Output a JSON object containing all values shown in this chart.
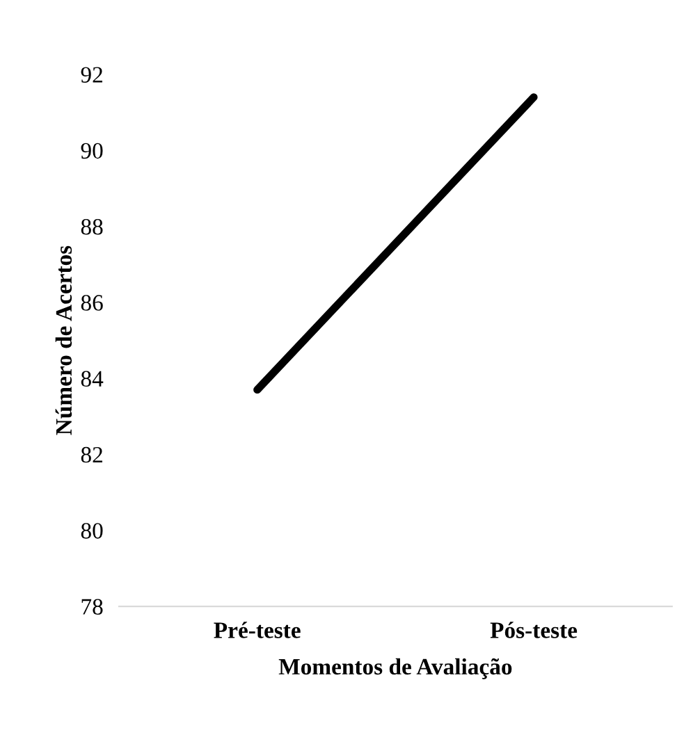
{
  "chart_data": {
    "type": "line",
    "xlabel": "Momentos de Avaliação",
    "ylabel": "Número de Acertos",
    "categories": [
      "Pré-teste",
      "Pós-teste"
    ],
    "series": [
      {
        "color": "#000000",
        "values": [
          83.7,
          91.4
        ]
      }
    ],
    "ylim": [
      78,
      92
    ],
    "yticks": [
      78,
      80,
      82,
      84,
      86,
      88,
      90,
      92
    ],
    "grid": false,
    "legend": false,
    "marker": "none",
    "line_style": "solid"
  }
}
